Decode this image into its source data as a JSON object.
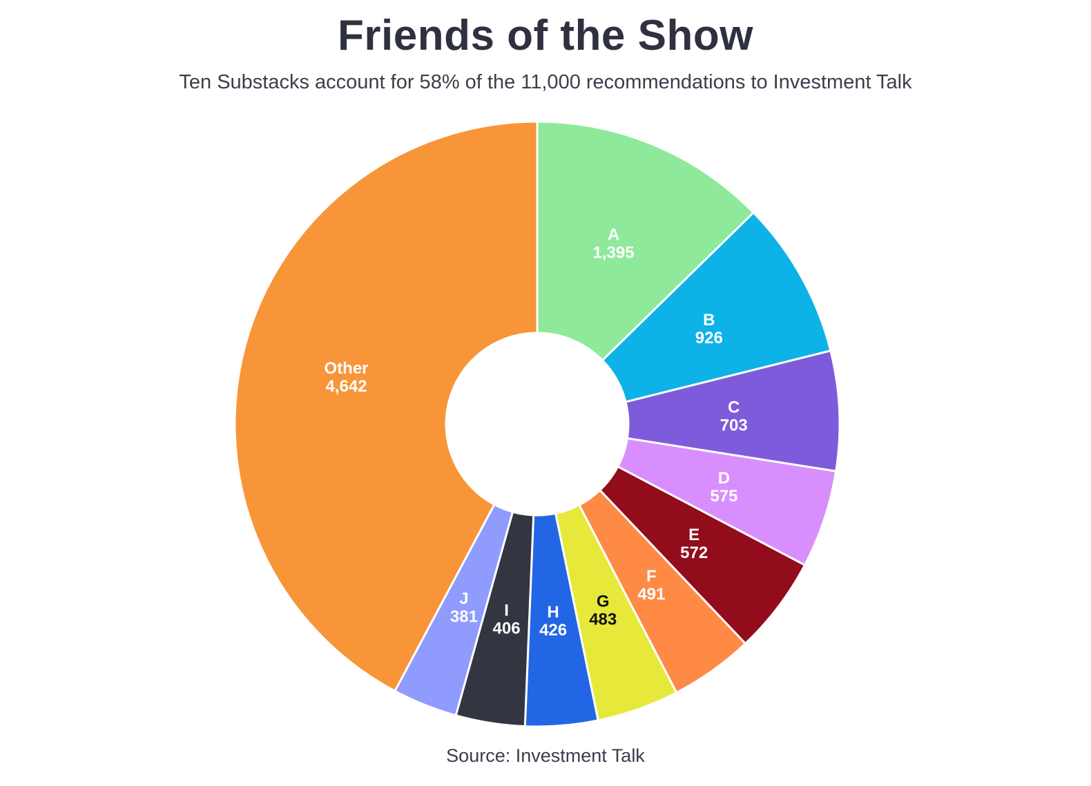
{
  "header": {
    "title": "Friends of the Show",
    "subtitle": "Ten Substacks account for 58% of the 11,000 recommendations to Investment Talk"
  },
  "footer": {
    "source": "Source: Investment Talk"
  },
  "chart_data": {
    "type": "pie",
    "title": "Friends of the Show",
    "subtitle": "Ten Substacks account for 58% of the 11,000 recommendations to Investment Talk",
    "donut": true,
    "start_angle_deg": 0,
    "direction": "clockwise",
    "slices": [
      {
        "label": "A",
        "value": 1395,
        "value_text": "1,395",
        "color": "#8ee99a",
        "text_color": "#ffffff"
      },
      {
        "label": "B",
        "value": 926,
        "value_text": "926",
        "color": "#0db3e6",
        "text_color": "#ffffff"
      },
      {
        "label": "C",
        "value": 703,
        "value_text": "703",
        "color": "#7e5bdb",
        "text_color": "#ffffff"
      },
      {
        "label": "D",
        "value": 575,
        "value_text": "575",
        "color": "#d88ffd",
        "text_color": "#ffffff"
      },
      {
        "label": "E",
        "value": 572,
        "value_text": "572",
        "color": "#920c1c",
        "text_color": "#ffffff"
      },
      {
        "label": "F",
        "value": 491,
        "value_text": "491",
        "color": "#fe8a46",
        "text_color": "#ffffff"
      },
      {
        "label": "G",
        "value": 483,
        "value_text": "483",
        "color": "#e6e93a",
        "text_color": "#111111"
      },
      {
        "label": "H",
        "value": 426,
        "value_text": "426",
        "color": "#2266e5",
        "text_color": "#ffffff"
      },
      {
        "label": "I",
        "value": 406,
        "value_text": "406",
        "color": "#333541",
        "text_color": "#ffffff"
      },
      {
        "label": "J",
        "value": 381,
        "value_text": "381",
        "color": "#8f9bfd",
        "text_color": "#ffffff"
      },
      {
        "label": "Other",
        "value": 4642,
        "value_text": "4,642",
        "color": "#f79538",
        "text_color": "#ffffff"
      }
    ]
  }
}
